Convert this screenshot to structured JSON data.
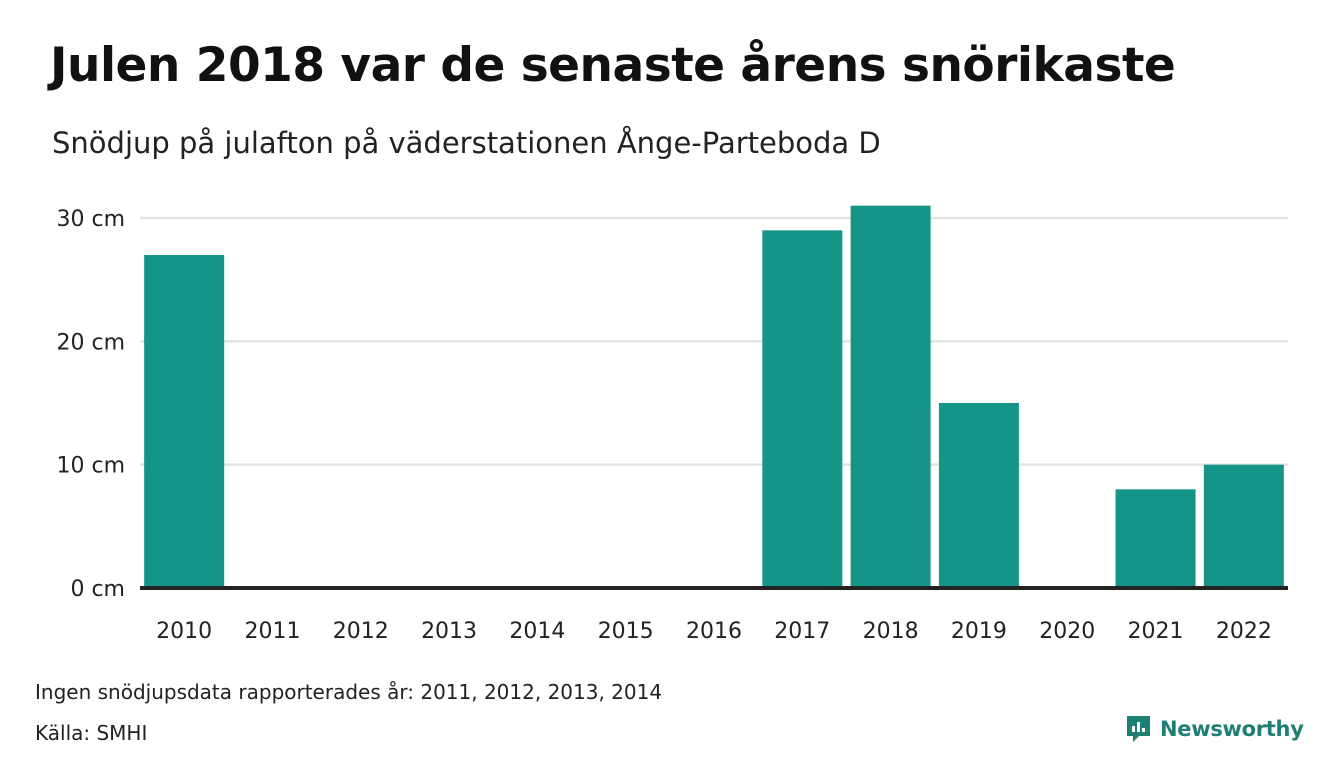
{
  "title": "Julen 2018 var de senaste årens snörikaste",
  "subtitle": "Snödjup på julafton på väderstationen Ånge-Parteboda D",
  "note": "Ingen snödjupsdata rapporterades år: 2011, 2012, 2013, 2014",
  "source": "Källa: SMHI",
  "brand": {
    "name": "Newsworthy",
    "icon": "newsworthy-logo-icon",
    "color": "#1e7f74"
  },
  "colors": {
    "bar": "#149587",
    "grid": "#e3e3e3",
    "baseline": "#222222"
  },
  "chart_data": {
    "type": "bar",
    "categories": [
      "2010",
      "2011",
      "2012",
      "2013",
      "2014",
      "2015",
      "2016",
      "2017",
      "2018",
      "2019",
      "2020",
      "2021",
      "2022"
    ],
    "values": [
      27,
      0,
      0,
      0,
      0,
      0,
      0,
      29,
      31,
      15,
      0,
      8,
      10
    ],
    "unit": "cm",
    "ylim": [
      0,
      30
    ],
    "yticks": [
      0,
      10,
      20,
      30
    ],
    "ytick_labels": [
      "0 cm",
      "10 cm",
      "20 cm",
      "30 cm"
    ],
    "grid": true,
    "xlabel": "",
    "ylabel": ""
  }
}
